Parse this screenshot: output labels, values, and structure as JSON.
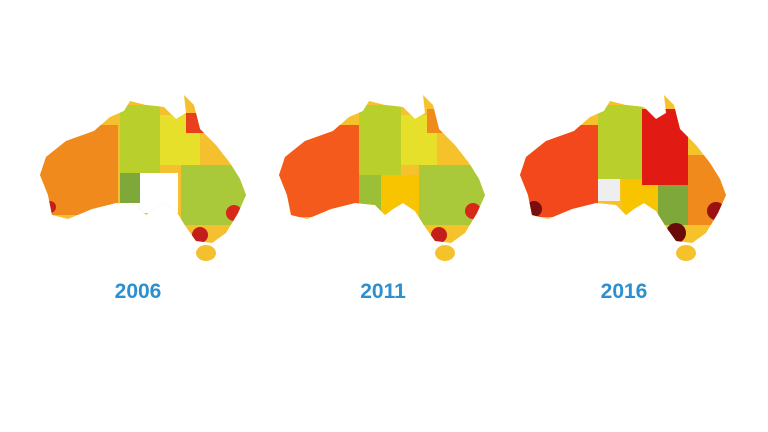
{
  "maps": [
    {
      "label": "2006"
    },
    {
      "label": "2011"
    },
    {
      "label": "2016"
    }
  ]
}
